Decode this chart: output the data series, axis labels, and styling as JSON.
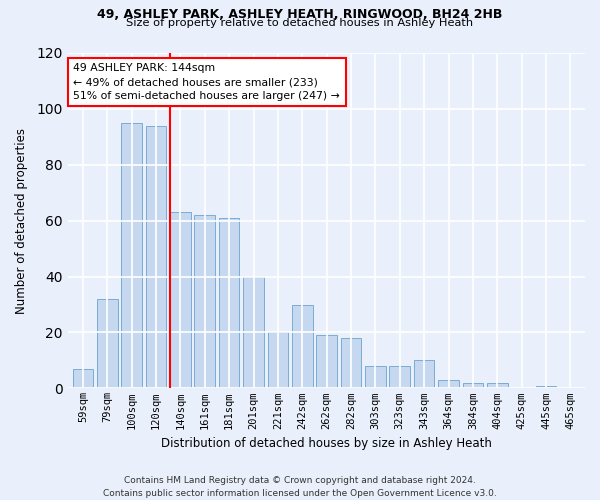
{
  "title1": "49, ASHLEY PARK, ASHLEY HEATH, RINGWOOD, BH24 2HB",
  "title2": "Size of property relative to detached houses in Ashley Heath",
  "xlabel": "Distribution of detached houses by size in Ashley Heath",
  "ylabel": "Number of detached properties",
  "categories": [
    "59sqm",
    "79sqm",
    "100sqm",
    "120sqm",
    "140sqm",
    "161sqm",
    "181sqm",
    "201sqm",
    "221sqm",
    "242sqm",
    "262sqm",
    "282sqm",
    "303sqm",
    "323sqm",
    "343sqm",
    "364sqm",
    "384sqm",
    "404sqm",
    "425sqm",
    "445sqm",
    "465sqm"
  ],
  "values": [
    7,
    32,
    95,
    94,
    63,
    62,
    61,
    40,
    20,
    30,
    19,
    18,
    8,
    8,
    10,
    3,
    2,
    2,
    0,
    1,
    0
  ],
  "bar_color": "#c5d8f0",
  "bar_edge_color": "#7aadd4",
  "annotation_text": "49 ASHLEY PARK: 144sqm\n← 49% of detached houses are smaller (233)\n51% of semi-detached houses are larger (247) →",
  "annotation_box_color": "white",
  "annotation_box_edge_color": "red",
  "vline_color": "red",
  "vline_x_index": 4,
  "ylim": [
    0,
    120
  ],
  "yticks": [
    0,
    20,
    40,
    60,
    80,
    100,
    120
  ],
  "bg_color": "#eaf0fb",
  "grid_color": "white",
  "footer": "Contains HM Land Registry data © Crown copyright and database right 2024.\nContains public sector information licensed under the Open Government Licence v3.0."
}
